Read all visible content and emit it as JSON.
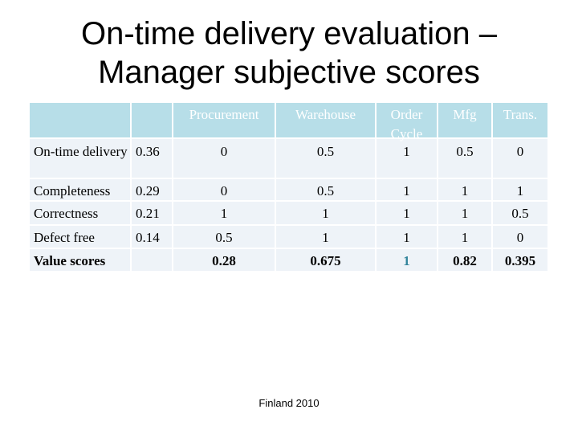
{
  "title": [
    "On-time delivery evaluation –",
    "Manager subjective scores"
  ],
  "table": {
    "columns": [
      "Procurement",
      "Warehouse",
      "Order Cycle",
      "Mfg",
      "Trans."
    ],
    "rows": [
      {
        "label": "On-time delivery",
        "weight": "0.36",
        "values": [
          "0",
          "0.5",
          "1",
          "0.5",
          "0"
        ]
      },
      {
        "label": "Completeness",
        "weight": "0.29",
        "values": [
          "0",
          "0.5",
          "1",
          "1",
          "1"
        ]
      },
      {
        "label": "Correctness",
        "weight": "0.21",
        "values": [
          "1",
          "1",
          "1",
          "1",
          "0.5"
        ]
      },
      {
        "label": "Defect free",
        "weight": "0.14",
        "values": [
          "0.5",
          "1",
          "1",
          "1",
          "0"
        ]
      },
      {
        "label": "Value scores",
        "values": [
          "0.28",
          "0.675",
          "1",
          "0.82",
          "0.395"
        ]
      }
    ]
  },
  "footer": "Finland 2010"
}
